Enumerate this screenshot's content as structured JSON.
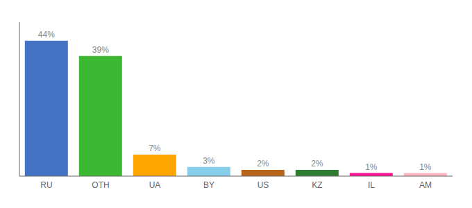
{
  "chart_data": {
    "type": "bar",
    "categories": [
      "RU",
      "OTH",
      "UA",
      "BY",
      "US",
      "KZ",
      "IL",
      "AM"
    ],
    "values": [
      44,
      39,
      7,
      3,
      2,
      2,
      1,
      1
    ],
    "value_labels": [
      "44%",
      "39%",
      "7%",
      "3%",
      "2%",
      "2%",
      "1%",
      "1%"
    ],
    "colors": [
      "#4472C4",
      "#3CB832",
      "#FFA500",
      "#87CEEB",
      "#B8651A",
      "#2E7D32",
      "#FF1493",
      "#FFB6C1"
    ],
    "ylim": [
      0,
      50
    ],
    "data_labels": true,
    "tick_labels": "x",
    "grid": false
  }
}
